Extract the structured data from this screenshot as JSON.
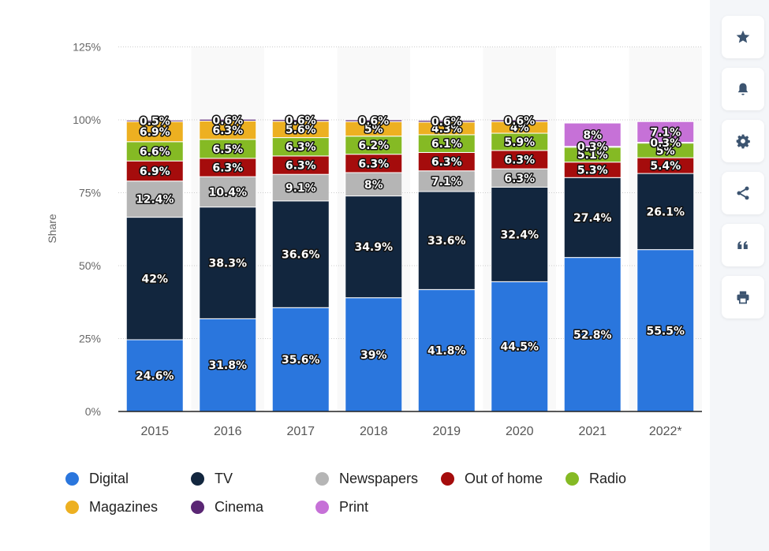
{
  "toolbar": {
    "buttons": [
      {
        "name": "favorite-button",
        "icon": "star-icon"
      },
      {
        "name": "notification-button",
        "icon": "bell-icon"
      },
      {
        "name": "settings-button",
        "icon": "gear-icon"
      },
      {
        "name": "share-button",
        "icon": "share-icon"
      },
      {
        "name": "cite-button",
        "icon": "quote-icon"
      },
      {
        "name": "print-button",
        "icon": "printer-icon"
      }
    ]
  },
  "colors": {
    "Digital": "#2a76dd",
    "TV": "#12263e",
    "Newspapers": "#b5b5b5",
    "Out of home": "#a50c0c",
    "Radio": "#85ba24",
    "Magazines": "#edb021",
    "Cinema": "#5a2674",
    "Print": "#c671d7",
    "band": "#f9f9f9",
    "grid": "#cccccc",
    "icon": "#3c5470"
  },
  "chart_data": {
    "type": "bar",
    "stacked": true,
    "title": "",
    "xlabel": "",
    "ylabel": "Share",
    "ylim": [
      0,
      125
    ],
    "yticks": [
      0,
      25,
      50,
      75,
      100,
      125
    ],
    "ytick_labels": [
      "0%",
      "25%",
      "50%",
      "75%",
      "100%",
      "125%"
    ],
    "grid": true,
    "legend_position": "bottom",
    "categories": [
      "2015",
      "2016",
      "2017",
      "2018",
      "2019",
      "2020",
      "2021",
      "2022*"
    ],
    "series": [
      {
        "name": "Digital",
        "values": [
          24.6,
          31.8,
          35.6,
          39,
          41.8,
          44.5,
          52.8,
          55.5
        ],
        "labels": [
          "24.6%",
          "31.8%",
          "35.6%",
          "39%",
          "41.8%",
          "44.5%",
          "52.8%",
          "55.5%"
        ]
      },
      {
        "name": "TV",
        "values": [
          42,
          38.3,
          36.6,
          34.9,
          33.6,
          32.4,
          27.4,
          26.1
        ],
        "labels": [
          "42%",
          "38.3%",
          "36.6%",
          "34.9%",
          "33.6%",
          "32.4%",
          "27.4%",
          "26.1%"
        ]
      },
      {
        "name": "Newspapers",
        "values": [
          12.4,
          10.4,
          9.1,
          8,
          7.1,
          6.3,
          null,
          null
        ],
        "labels": [
          "12.4%",
          "10.4%",
          "9.1%",
          "8%",
          "7.1%",
          "6.3%",
          null,
          null
        ]
      },
      {
        "name": "Out of home",
        "values": [
          6.9,
          6.3,
          6.3,
          6.3,
          6.3,
          6.3,
          5.3,
          5.4
        ],
        "labels": [
          "6.9%",
          "6.3%",
          "6.3%",
          "6.3%",
          "6.3%",
          "6.3%",
          "5.3%",
          "5.4%"
        ]
      },
      {
        "name": "Radio",
        "values": [
          6.6,
          6.5,
          6.3,
          6.2,
          6.1,
          5.9,
          5.1,
          5
        ],
        "labels": [
          "6.6%",
          "6.5%",
          "6.3%",
          "6.2%",
          "6.1%",
          "5.9%",
          "5.1%",
          "5%"
        ]
      },
      {
        "name": "Magazines",
        "values": [
          6.9,
          6.3,
          5.6,
          5,
          4.3,
          4,
          null,
          null
        ],
        "labels": [
          "6.9%",
          "6.3%",
          "5.6%",
          "5%",
          "4.3%",
          "4%",
          null,
          null
        ]
      },
      {
        "name": "Cinema",
        "values": [
          0.5,
          0.6,
          0.6,
          0.6,
          0.6,
          0.6,
          0.3,
          0.3
        ],
        "labels": [
          "0.5%",
          "0.6%",
          "0.6%",
          "0.6%",
          "0.6%",
          "0.6%",
          "0.3%",
          "0.3%"
        ]
      },
      {
        "name": "Print",
        "values": [
          null,
          null,
          null,
          null,
          null,
          null,
          8,
          7.1
        ],
        "labels": [
          null,
          null,
          null,
          null,
          null,
          null,
          "8%",
          "7.1%"
        ]
      }
    ]
  },
  "legend": {
    "items": [
      {
        "label": "Digital"
      },
      {
        "label": "TV"
      },
      {
        "label": "Newspapers"
      },
      {
        "label": "Out of home"
      },
      {
        "label": "Radio"
      },
      {
        "label": "Magazines"
      },
      {
        "label": "Cinema"
      },
      {
        "label": "Print"
      }
    ]
  }
}
